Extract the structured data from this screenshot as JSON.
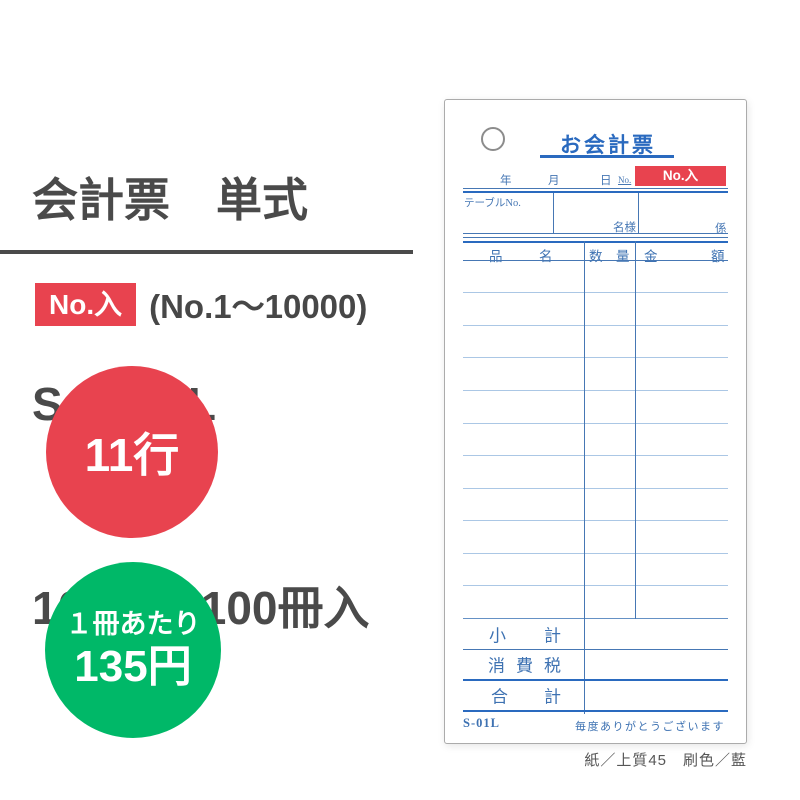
{
  "colors": {
    "accent_red": "#e8434f",
    "accent_green": "#00b868",
    "text_dark": "#4a4a4a",
    "slip_blue_strong": "#2a6abf",
    "slip_blue_label": "#4677b4",
    "slip_row_line": "#abc7e5"
  },
  "left_panel": {
    "title_line1": "会計票　単式",
    "title_line2": "S－01L",
    "title_line3": "100枚　100冊入",
    "badge_label": "No.入",
    "number_range": "(No.1～10000)",
    "rows_circle_label": "11行",
    "price_circle_line1": "１冊あたり",
    "price_circle_line2": "135円"
  },
  "slip": {
    "title": "お会計票",
    "date_labels": {
      "year": "年",
      "month": "月",
      "day": "日",
      "no": "No."
    },
    "badge_label": "No.入",
    "table_no_label": "テーブルNo.",
    "guests_label": "名様",
    "staff_label": "係",
    "header_cols": {
      "item": [
        "品",
        "名"
      ],
      "qty": [
        "数",
        "量"
      ],
      "amount": [
        "金",
        "額"
      ]
    },
    "detail_rows_count": 11,
    "totals": {
      "subtotal": [
        "小",
        "計"
      ],
      "tax": [
        "消",
        "費",
        "税"
      ],
      "total": [
        "合",
        "計"
      ]
    },
    "product_code": "S-01L",
    "thanks_note": "毎度ありがとうございます"
  },
  "footer_caption": "紙／上質45　刷色／藍"
}
